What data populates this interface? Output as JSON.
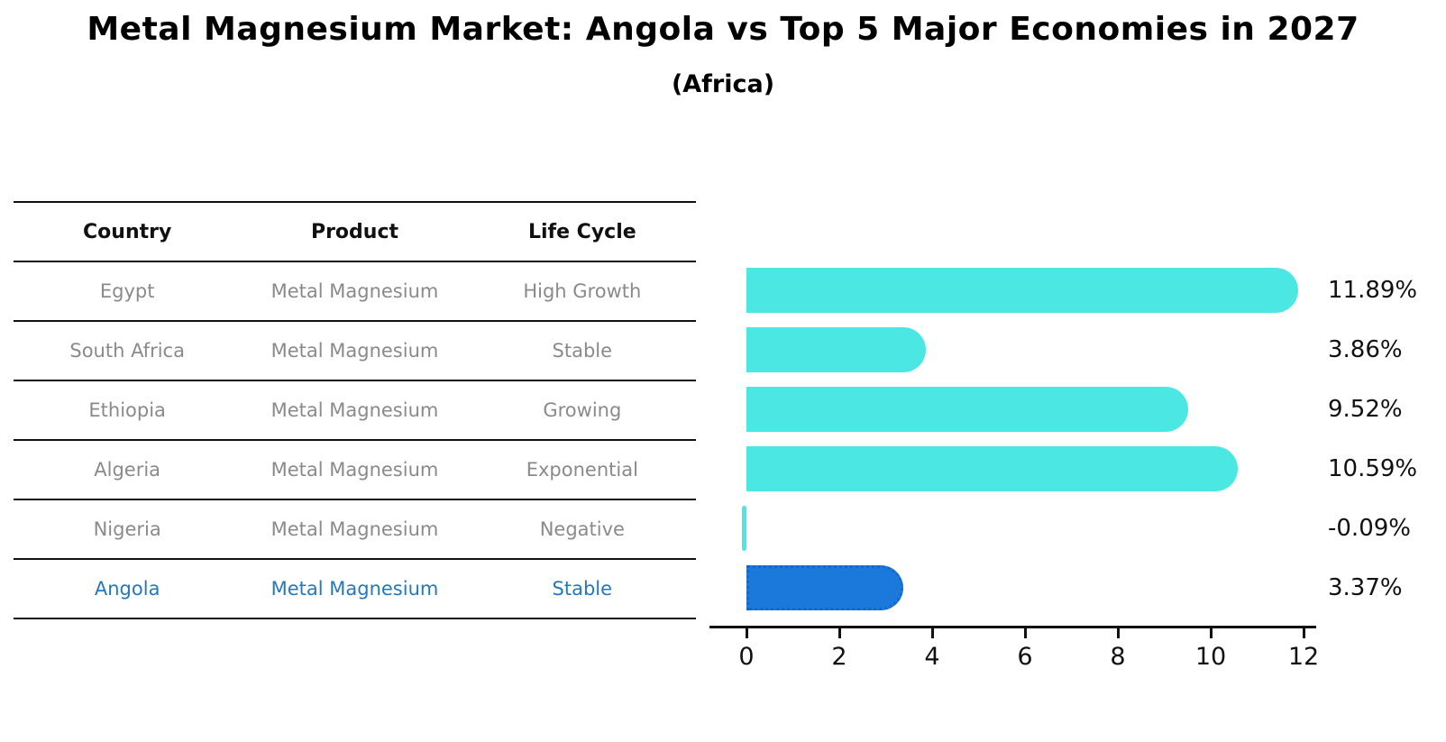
{
  "title": "Metal Magnesium Market: Angola vs Top 5 Major Economies in 2027",
  "subtitle": "(Africa)",
  "table": {
    "headers": [
      "Country",
      "Product",
      "Life Cycle"
    ],
    "rows": [
      {
        "country": "Egypt",
        "product": "Metal Magnesium",
        "life_cycle": "High Growth",
        "highlight": false
      },
      {
        "country": "South Africa",
        "product": "Metal Magnesium",
        "life_cycle": "Stable",
        "highlight": false
      },
      {
        "country": "Ethiopia",
        "product": "Metal Magnesium",
        "life_cycle": "Growing",
        "highlight": false
      },
      {
        "country": "Algeria",
        "product": "Metal Magnesium",
        "life_cycle": "Exponential",
        "highlight": false
      },
      {
        "country": "Nigeria",
        "product": "Metal Magnesium",
        "life_cycle": "Negative",
        "highlight": false
      },
      {
        "country": "Angola",
        "product": "Metal Magnesium",
        "life_cycle": "Stable",
        "highlight": true
      }
    ]
  },
  "chart_data": {
    "type": "bar",
    "orientation": "horizontal",
    "title": "Metal Magnesium Market: Angola vs Top 5 Major Economies in 2027",
    "subtitle": "(Africa)",
    "categories": [
      "Egypt",
      "South Africa",
      "Ethiopia",
      "Algeria",
      "Nigeria",
      "Angola"
    ],
    "values": [
      11.89,
      3.86,
      9.52,
      10.59,
      -0.09,
      3.37
    ],
    "value_labels": [
      "11.89%",
      "3.86%",
      "9.52%",
      "10.59%",
      "-0.09%",
      "3.37%"
    ],
    "xticks": [
      "0",
      "2",
      "4",
      "6",
      "8",
      "10",
      "12"
    ],
    "xtick_values": [
      0,
      2,
      4,
      6,
      8,
      10,
      12
    ],
    "xlim": [
      -0.8,
      13.2
    ],
    "grid": false,
    "legend": false,
    "bar_color": "#4ae7e3",
    "highlight_index": 5,
    "highlight_bar_color": "#1b79dc",
    "highlight_bar_border_color": "#1668c8",
    "highlight_text_color": "#2478be",
    "label_color": "#111111"
  }
}
